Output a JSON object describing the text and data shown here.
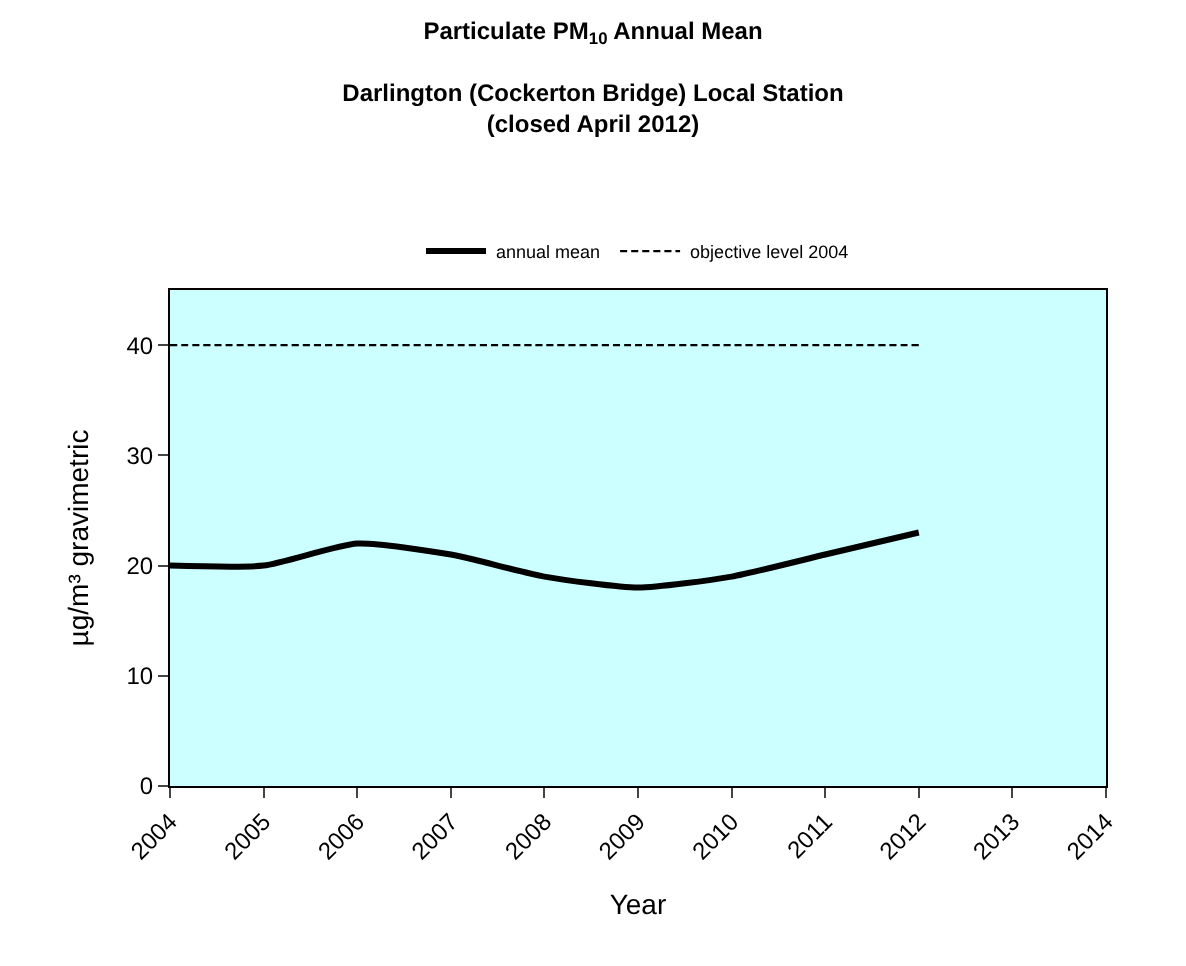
{
  "chart_data": {
    "type": "line",
    "title": "Particulate PM$_{10}$ Annual Mean",
    "subtitle": "Darlington (Cockerton Bridge) Local Station\n(closed April 2012)",
    "xlabel": "Year",
    "ylabel": "µg/m³ gravimetric",
    "x": [
      2004,
      2005,
      2006,
      2007,
      2008,
      2009,
      2010,
      2011,
      2012
    ],
    "series": [
      {
        "name": "annual mean",
        "color": "#000000",
        "values": [
          20,
          20,
          22,
          21,
          19,
          18,
          19,
          21,
          23
        ],
        "line_style": "solid"
      },
      {
        "name": "objective level 2004",
        "color": "#000000",
        "values": [
          40,
          40,
          40,
          40,
          40,
          40,
          40,
          40,
          40
        ],
        "line_style": "dashed"
      }
    ],
    "xlim": [
      2004,
      2014
    ],
    "xticks": [
      2004,
      2005,
      2006,
      2007,
      2008,
      2009,
      2010,
      2011,
      2012,
      2013,
      2014
    ],
    "ylim": [
      0,
      45
    ],
    "yticks": [
      0,
      10,
      20,
      30,
      40
    ],
    "grid": false,
    "legend": "top",
    "marker": "none"
  }
}
